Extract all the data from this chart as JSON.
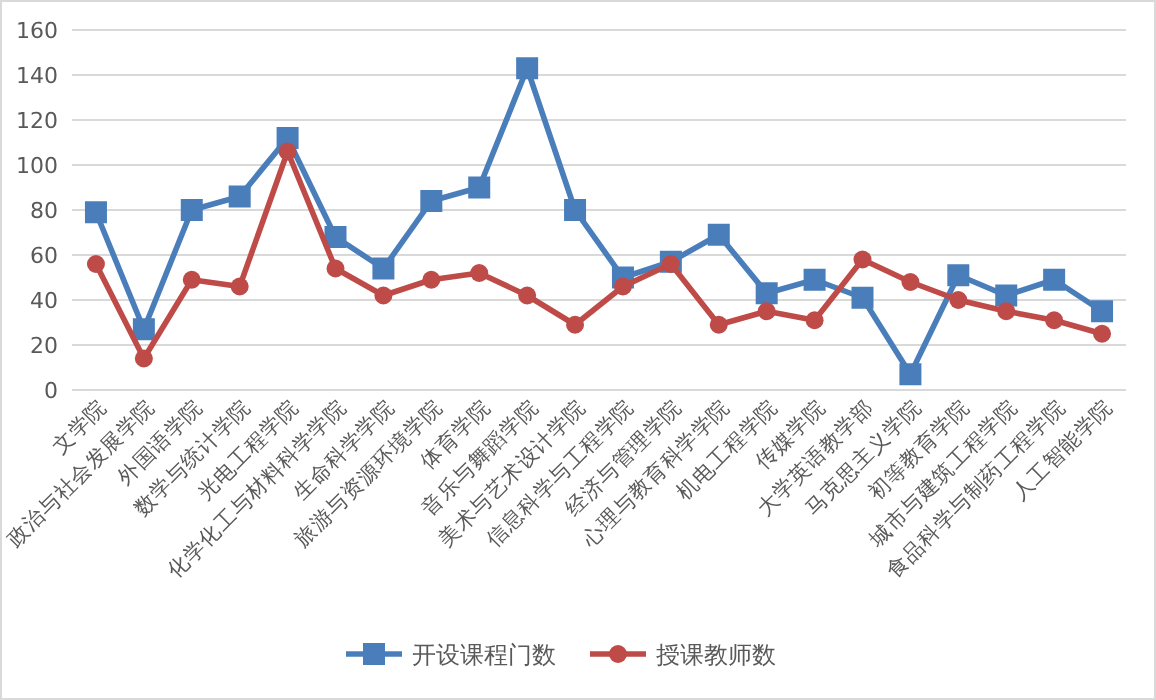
{
  "chart_data": {
    "type": "line",
    "categories": [
      "文学院",
      "政治与社会发展学院",
      "外国语学院",
      "数学与统计学院",
      "光电工程学院",
      "化学化工与材料科学学院",
      "生命科学学院",
      "旅游与资源环境学院",
      "体育学院",
      "音乐与舞蹈学院",
      "美术与艺术设计学院",
      "信息科学与工程学院",
      "经济与管理学院",
      "心理与教育科学学院",
      "机电工程学院",
      "传媒学院",
      "大学英语教学部",
      "马克思主义学院",
      "初等教育学院",
      "城市与建筑工程学院",
      "食品科学与制药工程学院",
      "人工智能学院"
    ],
    "series": [
      {
        "name": "开设课程门数",
        "color": "#4a7ebb",
        "marker": "square",
        "values": [
          79,
          27,
          80,
          86,
          112,
          68,
          54,
          84,
          90,
          143,
          80,
          50,
          57,
          69,
          43,
          49,
          41,
          7,
          51,
          42,
          49,
          35
        ]
      },
      {
        "name": "授课教师数",
        "color": "#be4b48",
        "marker": "circle",
        "values": [
          56,
          14,
          49,
          46,
          106,
          54,
          42,
          49,
          52,
          42,
          29,
          46,
          56,
          29,
          35,
          31,
          58,
          48,
          40,
          35,
          31,
          25
        ]
      }
    ],
    "ylim": [
      0,
      160
    ],
    "yticks": [
      0,
      20,
      40,
      60,
      80,
      100,
      120,
      140,
      160
    ],
    "grid": "y",
    "legend": "bottom"
  }
}
